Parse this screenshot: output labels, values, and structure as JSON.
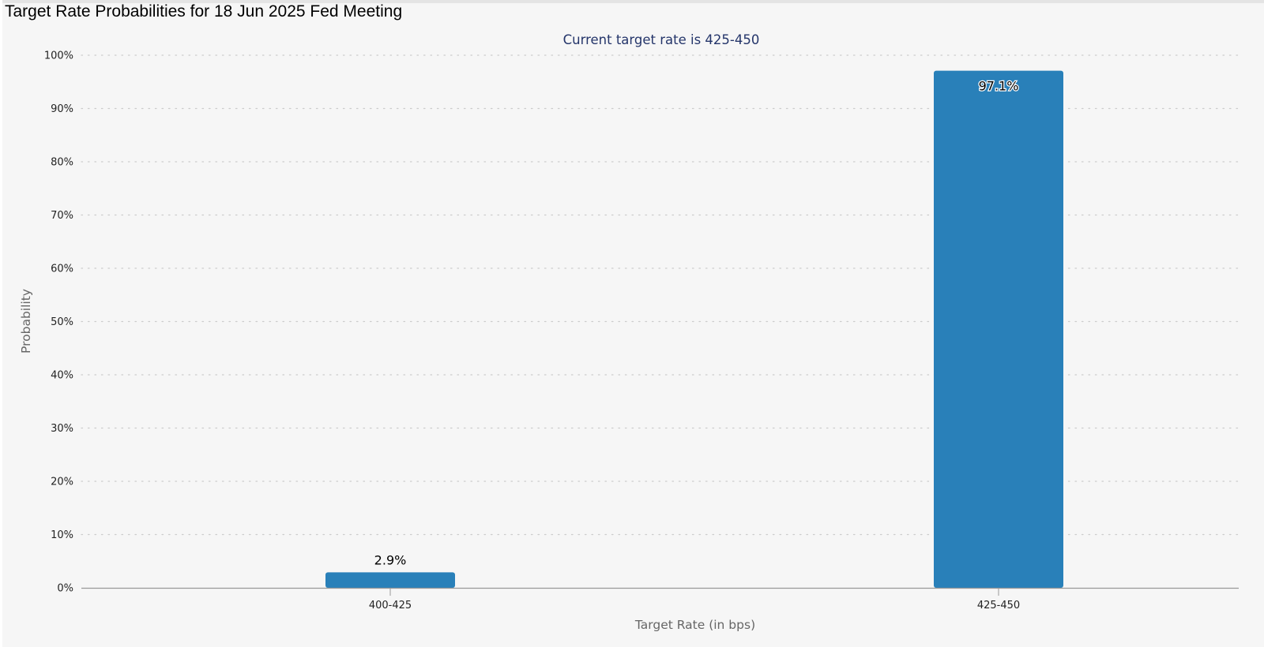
{
  "page": {
    "title": "Target Rate Probabilities for 18 Jun 2025 Fed Meeting"
  },
  "chart_data": {
    "type": "bar",
    "subtitle": "Current target rate is 425-450",
    "categories": [
      "400-425",
      "425-450"
    ],
    "values": [
      2.9,
      97.1
    ],
    "data_labels": [
      "2.9%",
      "97.1%"
    ],
    "xlabel": "Target Rate (in bps)",
    "ylabel": "Probability",
    "ylim": [
      0,
      100
    ],
    "yticks": [
      0,
      10,
      20,
      30,
      40,
      50,
      60,
      70,
      80,
      90,
      100
    ],
    "ytick_suffix": "%",
    "grid": true,
    "legend": false,
    "colors": {
      "bar": "#2980b9",
      "subtitle": "#24356a",
      "grid": "#cccccc",
      "axis": "#999999"
    }
  }
}
